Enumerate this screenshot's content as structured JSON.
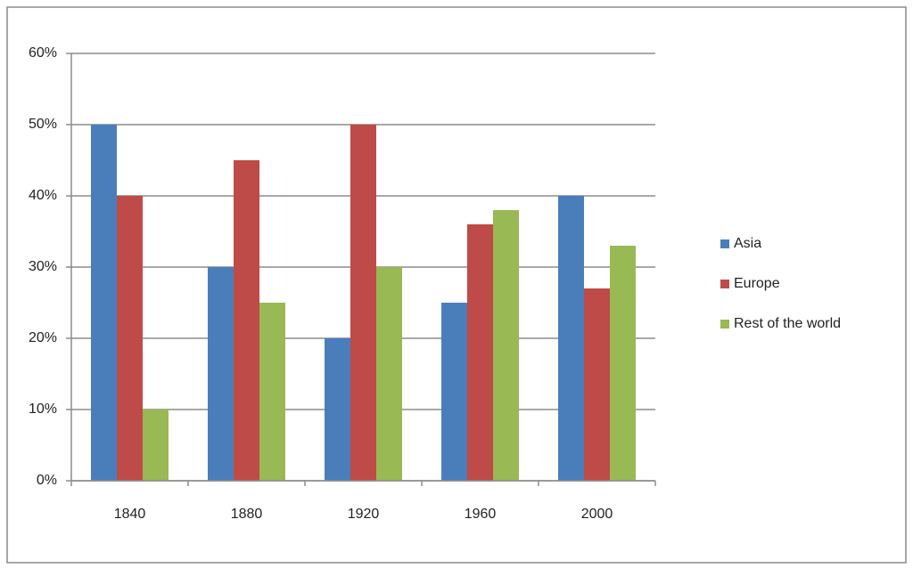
{
  "chart_data": {
    "type": "bar",
    "categories": [
      "1840",
      "1880",
      "1920",
      "1960",
      "2000"
    ],
    "series": [
      {
        "name": "Asia",
        "color": "#4a7ebb",
        "values": [
          50,
          30,
          20,
          25,
          40
        ]
      },
      {
        "name": "Europe",
        "color": "#be4b48",
        "values": [
          40,
          45,
          50,
          36,
          27
        ]
      },
      {
        "name": "Rest of the world",
        "color": "#98b954",
        "values": [
          10,
          25,
          30,
          38,
          33
        ]
      }
    ],
    "ylim": [
      0,
      60
    ],
    "yticks": [
      {
        "value": 0,
        "label": "0%"
      },
      {
        "value": 10,
        "label": "10%"
      },
      {
        "value": 20,
        "label": "20%"
      },
      {
        "value": 30,
        "label": "30%"
      },
      {
        "value": 40,
        "label": "40%"
      },
      {
        "value": 50,
        "label": "50%"
      },
      {
        "value": 60,
        "label": "60%"
      }
    ],
    "grid": true,
    "legend": "right"
  }
}
